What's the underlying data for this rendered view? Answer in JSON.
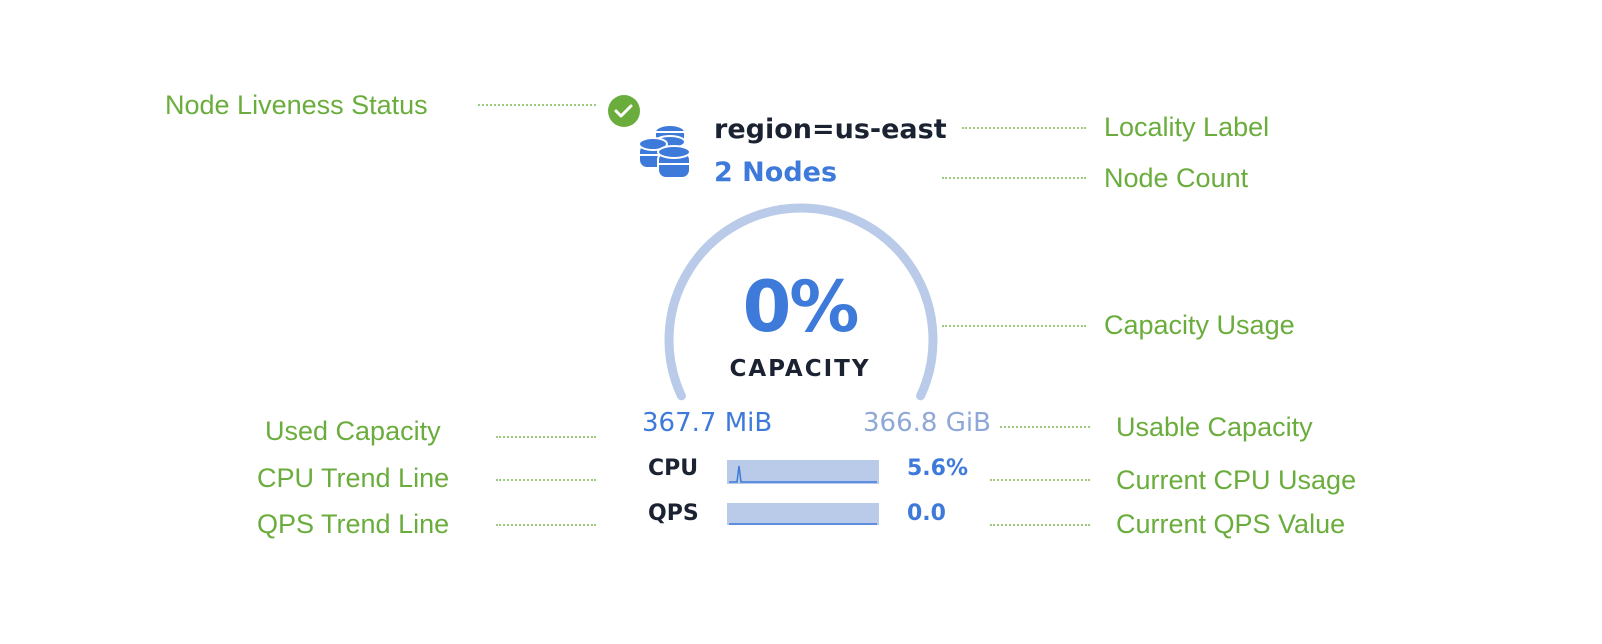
{
  "widget": {
    "liveness_icon": "check-circle-icon",
    "node_icon": "database-stack-icon",
    "locality_label": "region=us-east",
    "node_count": "2 Nodes",
    "capacity_percent": "0%",
    "capacity_label": "CAPACITY",
    "capacity_fraction": 0,
    "used_capacity": "367.7 MiB",
    "usable_capacity": "366.8 GiB",
    "cpu_label": "CPU",
    "cpu_value": "5.6%",
    "qps_label": "QPS",
    "qps_value": "0.0"
  },
  "annotations": {
    "liveness": "Node Liveness Status",
    "locality": "Locality Label",
    "node_count": "Node Count",
    "capacity_usage": "Capacity Usage",
    "used_capacity": "Used Capacity",
    "usable_capacity": "Usable Capacity",
    "cpu_trend": "CPU Trend Line",
    "current_cpu": "Current CPU Usage",
    "qps_trend": "QPS Trend Line",
    "current_qps": "Current QPS Value"
  },
  "colors": {
    "annotation": "#6aad3d",
    "accent": "#3e7ad9",
    "gauge_track": "#b9cbe9",
    "status_ok": "#6aad3d"
  }
}
